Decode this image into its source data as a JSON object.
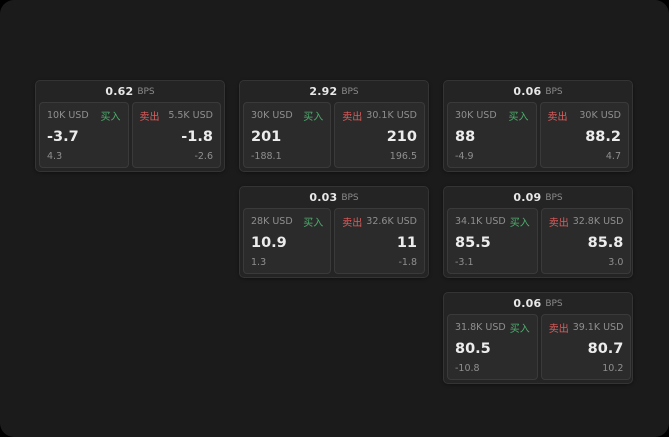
{
  "labels": {
    "bps": "BPS",
    "buy": "买入",
    "sell": "卖出"
  },
  "colors": {
    "buy_green": "#4caf6d",
    "sell_red": "#e05c5c",
    "background": "#1b1b1b",
    "card_bg": "#242424",
    "panel_bg": "#2b2b2b"
  },
  "cards": [
    {
      "bps": "0.62",
      "buy": {
        "amount": "10K USD",
        "price": "-3.7",
        "sub": "4.3"
      },
      "sell": {
        "amount": "5.5K USD",
        "price": "-1.8",
        "sub": "-2.6"
      }
    },
    {
      "bps": "2.92",
      "buy": {
        "amount": "30K USD",
        "price": "201",
        "sub": "-188.1"
      },
      "sell": {
        "amount": "30.1K USD",
        "price": "210",
        "sub": "196.5"
      }
    },
    {
      "bps": "0.06",
      "buy": {
        "amount": "30K USD",
        "price": "88",
        "sub": "-4.9"
      },
      "sell": {
        "amount": "30K USD",
        "price": "88.2",
        "sub": "4.7"
      }
    },
    {
      "bps": "0.03",
      "buy": {
        "amount": "28K USD",
        "price": "10.9",
        "sub": "1.3"
      },
      "sell": {
        "amount": "32.6K USD",
        "price": "11",
        "sub": "-1.8"
      }
    },
    {
      "bps": "0.09",
      "buy": {
        "amount": "34.1K USD",
        "price": "85.5",
        "sub": "-3.1"
      },
      "sell": {
        "amount": "32.8K USD",
        "price": "85.8",
        "sub": "3.0"
      }
    },
    {
      "bps": "0.06",
      "buy": {
        "amount": "31.8K USD",
        "price": "80.5",
        "sub": "-10.8"
      },
      "sell": {
        "amount": "39.1K USD",
        "price": "80.7",
        "sub": "10.2"
      }
    }
  ]
}
